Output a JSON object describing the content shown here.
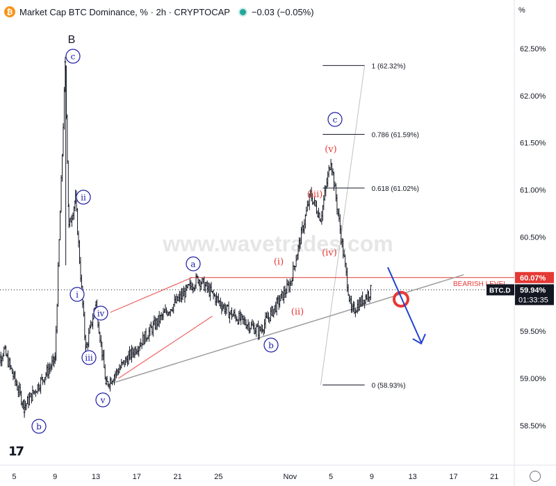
{
  "header": {
    "title": "Market Cap BTC Dominance, % · 2h · CRYPTOCAP",
    "change": "−0.03 (−0.05%)",
    "logo_icon": "bitcoin-icon"
  },
  "scale_unit": "%",
  "watermark": "www.wavetrades.com",
  "price_tag": {
    "symbol": "BTC.D",
    "value": "59.94%",
    "countdown": "01:33:35",
    "level_value": "60.07%"
  },
  "colors": {
    "up": "#131722",
    "red": "#e53935",
    "blue": "#1a1aa6",
    "fib": "#131722",
    "grey": "#9e9e9e",
    "pink": "#f06060"
  },
  "chart_data": {
    "type": "candlestick",
    "symbol": "BTC.D",
    "ylim": [
      58.2,
      62.9
    ],
    "y_ticks": [
      "62.50%",
      "62.00%",
      "61.50%",
      "61.00%",
      "60.50%",
      "60.07%",
      "59.50%",
      "59.00%",
      "58.50%"
    ],
    "x_ticks": [
      "5",
      "9",
      "13",
      "17",
      "21",
      "25",
      "Nov",
      "5",
      "9",
      "13",
      "17",
      "21"
    ],
    "fib_levels": [
      {
        "label": "1 (62.32%)",
        "value": 62.32
      },
      {
        "label": "0.786 (61.59%)",
        "value": 61.59
      },
      {
        "label": "0.618 (61.02%)",
        "value": 61.02
      },
      {
        "label": "0 (58.93%)",
        "value": 58.93
      }
    ],
    "bearish_level": {
      "label": "BEARISH LEVEL",
      "value": 60.07
    },
    "last_price": 59.94,
    "price_path_key_points": [
      {
        "t": "Oct 3",
        "v": 59.1
      },
      {
        "t": "Oct 4",
        "v": 59.3
      },
      {
        "t": "Oct 6",
        "v": 58.7
      },
      {
        "t": "Oct 9",
        "v": 59.2
      },
      {
        "t": "Oct 10",
        "v": 62.32
      },
      {
        "t": "Oct 10",
        "v": 60.6
      },
      {
        "t": "Oct 11",
        "v": 60.9
      },
      {
        "t": "Oct 12",
        "v": 59.3
      },
      {
        "t": "Oct 13",
        "v": 59.8
      },
      {
        "t": "Oct 14",
        "v": 58.93
      },
      {
        "t": "Oct 19",
        "v": 59.6
      },
      {
        "t": "Oct 23",
        "v": 60.06
      },
      {
        "t": "Oct 26",
        "v": 59.7
      },
      {
        "t": "Oct 29",
        "v": 59.5
      },
      {
        "t": "Nov 1",
        "v": 60.0
      },
      {
        "t": "Nov 3",
        "v": 60.95
      },
      {
        "t": "Nov 4",
        "v": 60.7
      },
      {
        "t": "Nov 5",
        "v": 61.33
      },
      {
        "t": "Nov 6",
        "v": 60.5
      },
      {
        "t": "Nov 7",
        "v": 59.7
      },
      {
        "t": "Nov 9",
        "v": 59.94
      }
    ],
    "wave_labels": {
      "black": [
        "B"
      ],
      "blue_circled": [
        "c",
        "ii",
        "i",
        "iv",
        "iii",
        "v",
        "b",
        "a",
        "c",
        "b"
      ],
      "red": [
        "(i)",
        "(ii)",
        "(iii)",
        "(iv)",
        "(v)"
      ]
    }
  }
}
